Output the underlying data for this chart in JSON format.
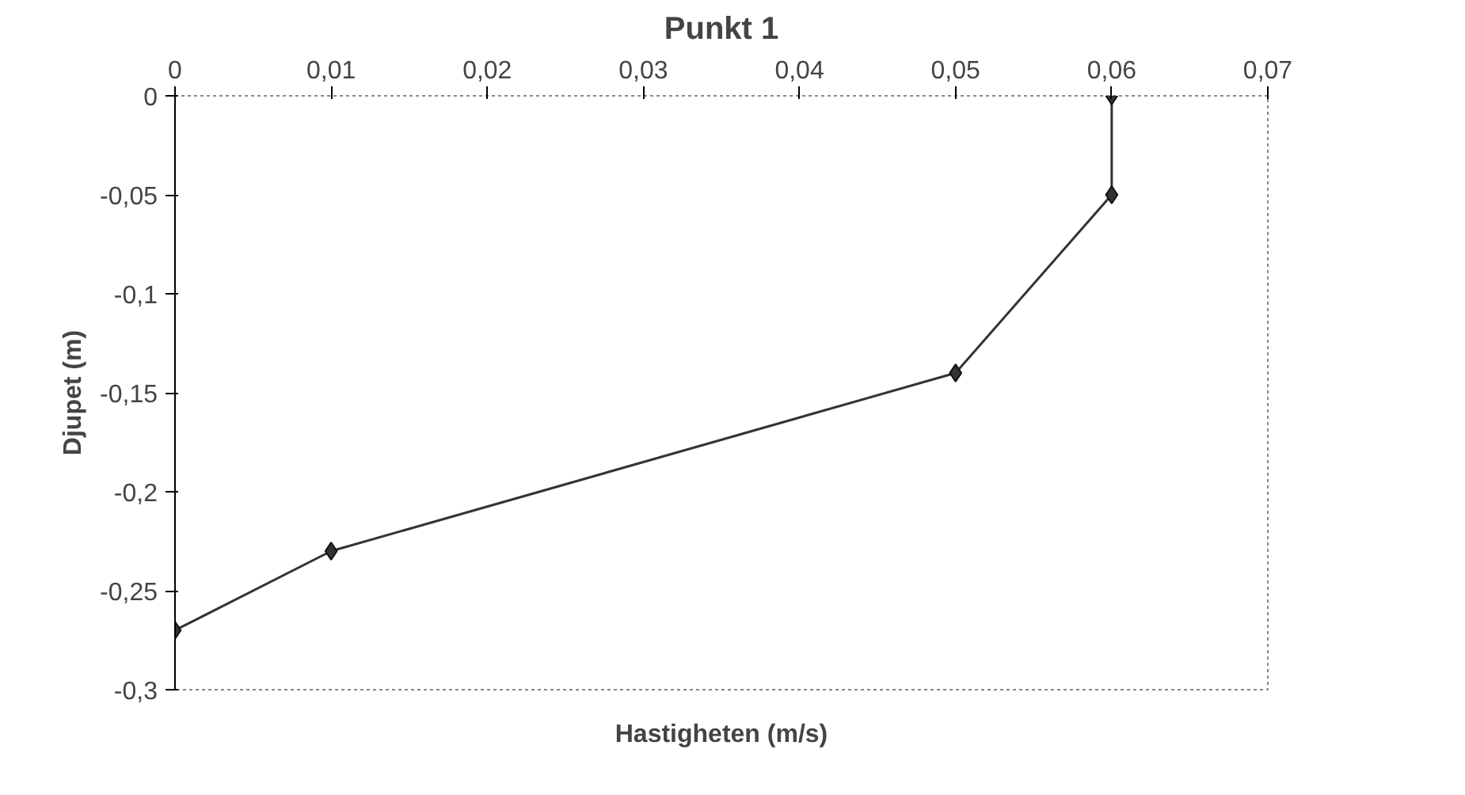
{
  "chart_data": {
    "type": "line",
    "title": "Punkt 1",
    "xlabel": "Hastigheten (m/s)",
    "ylabel": "Djupet (m)",
    "x": [
      0.06,
      0.06,
      0.05,
      0.01,
      0
    ],
    "series": [
      {
        "color": "#333333",
        "values": [
          0,
          -0.05,
          -0.14,
          -0.23,
          -0.27
        ]
      }
    ],
    "xlim": [
      0,
      0.07
    ],
    "ylim": [
      -0.3,
      0
    ],
    "xticks": [
      0,
      {
        "value": 0.01,
        "label": "0,01"
      },
      {
        "value": 0.02,
        "label": "0,02"
      },
      {
        "value": 0.03,
        "label": "0,03"
      },
      {
        "value": 0.04,
        "label": "0,04"
      },
      {
        "value": 0.05,
        "label": "0,05"
      },
      {
        "value": 0.06,
        "label": "0,06"
      },
      {
        "value": 0.07,
        "label": "0,07"
      }
    ],
    "yticks": [
      0,
      {
        "value": -0.05,
        "label": "-0,05"
      },
      {
        "value": -0.1,
        "label": "-0,1"
      },
      {
        "value": -0.15,
        "label": "-0,15"
      },
      {
        "value": -0.2,
        "label": "-0,2"
      },
      {
        "value": -0.25,
        "label": "-0,25"
      },
      {
        "value": -0.3,
        "label": "-0,3"
      }
    ],
    "marker": "diamond",
    "grid": false
  }
}
